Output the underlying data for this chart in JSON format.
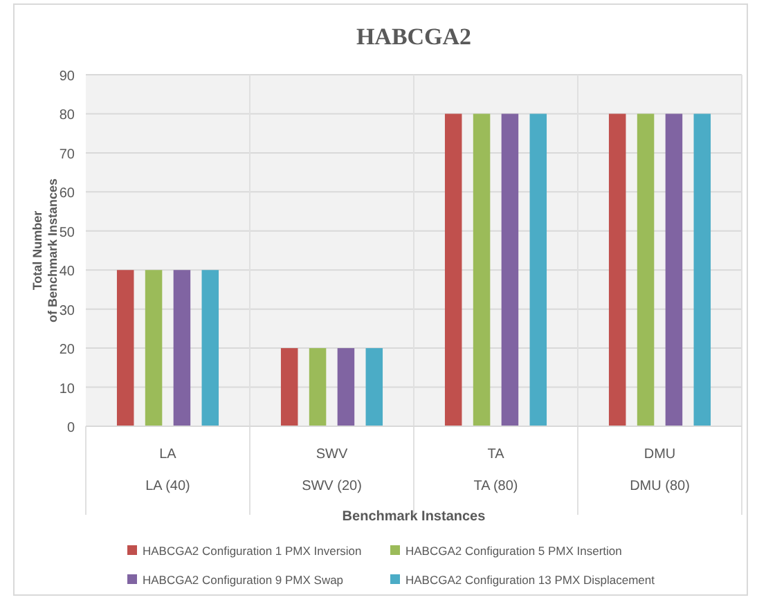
{
  "chart_data": {
    "type": "bar",
    "title": "HABCGA2",
    "xlabel": "Benchmark  Instances",
    "ylabel": "Total Number of Benchmark Instances",
    "categories": [
      "LA",
      "SWV",
      "TA",
      "DMU"
    ],
    "series": [
      {
        "name": "HABCGA2 Configuration 1 PMX Inversion",
        "color": "#c0504d",
        "values": [
          40,
          20,
          80,
          80
        ]
      },
      {
        "name": "HABCGA2 Configuration 5 PMX Insertion",
        "color": "#9bbb59",
        "values": [
          40,
          20,
          80,
          80
        ]
      },
      {
        "name": "HABCGA2 Configuration 9 PMX Swap",
        "color": "#8064a2",
        "values": [
          40,
          20,
          80,
          80
        ]
      },
      {
        "name": "HABCGA2 Configuration 13 PMX Displacement",
        "color": "#4bacc6",
        "values": [
          40,
          20,
          80,
          80
        ]
      }
    ],
    "ylim": [
      0,
      90
    ],
    "yticks": [
      0,
      10,
      20,
      30,
      40,
      50,
      60,
      70,
      80,
      90
    ],
    "grid": true,
    "legend": "bottom",
    "annotations": [
      "LA (40)",
      "SWV (20)",
      "TA (80)",
      "DMU (80)"
    ]
  }
}
